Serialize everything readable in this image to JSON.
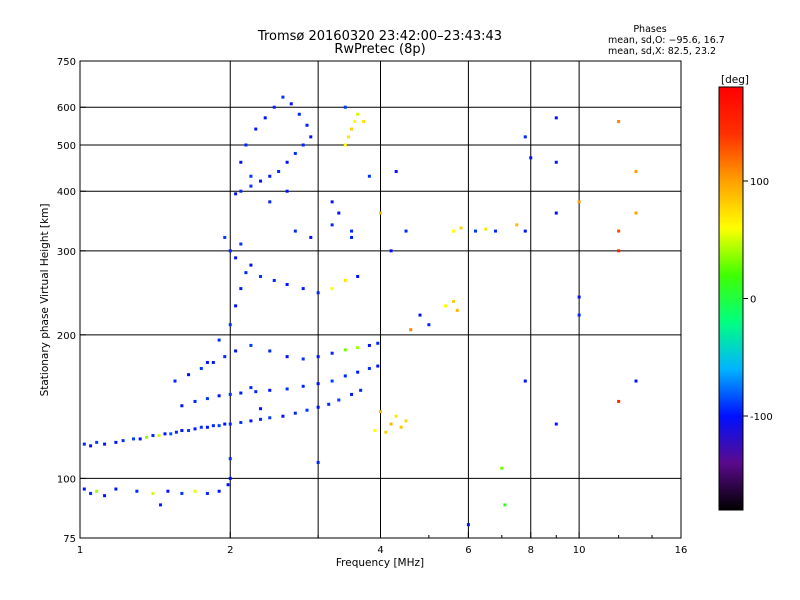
{
  "chart_data": {
    "type": "scatter",
    "title": "Tromsø 20160320 23:42:00–23:43:43",
    "subtitle": "RwPretec (8p)",
    "stats": {
      "header": "Phases",
      "line_o": "mean, sd,O: −95.6, 16.7",
      "line_x": "mean, sd,X:  82.5, 23.2"
    },
    "xlabel": "Frequency [MHz]",
    "ylabel": "Stationary phase Virtual Height [km]",
    "x_scale": "log",
    "y_scale": "log",
    "xlim": [
      1,
      16
    ],
    "ylim": [
      75,
      750
    ],
    "x_ticks": [
      {
        "value": 1,
        "label": "1"
      },
      {
        "value": 2,
        "label": "2"
      },
      {
        "value": 4,
        "label": "4"
      },
      {
        "value": 6,
        "label": "6"
      },
      {
        "value": 8,
        "label": "8"
      },
      {
        "value": 10,
        "label": "10"
      },
      {
        "value": 16,
        "label": "16"
      }
    ],
    "x_grid": [
      2,
      3,
      4,
      6,
      8,
      10
    ],
    "y_ticks": [
      {
        "value": 75,
        "label": "75"
      },
      {
        "value": 100,
        "label": "100"
      },
      {
        "value": 200,
        "label": "200"
      },
      {
        "value": 300,
        "label": "300"
      },
      {
        "value": 400,
        "label": "400"
      },
      {
        "value": 500,
        "label": "500"
      },
      {
        "value": 600,
        "label": "600"
      },
      {
        "value": 750,
        "label": "750"
      }
    ],
    "y_grid": [
      100,
      200,
      300,
      400,
      500,
      600
    ],
    "grid": true,
    "colorbar": {
      "label": "[deg]",
      "range": [
        -180,
        180
      ],
      "ticks": [
        {
          "value": 100,
          "label": "100"
        },
        {
          "value": 0,
          "label": "0"
        },
        {
          "value": -100,
          "label": "-100"
        }
      ],
      "colors": [
        "#000000",
        "#5a0a8c",
        "#0010ff",
        "#00b4ff",
        "#00ff80",
        "#40ff00",
        "#ffff00",
        "#ffa000",
        "#ff3000",
        "#ff0000"
      ]
    },
    "points": [
      [
        1.02,
        118,
        -95
      ],
      [
        1.05,
        117,
        -100
      ],
      [
        1.08,
        119,
        -90
      ],
      [
        1.12,
        118,
        -98
      ],
      [
        1.18,
        119,
        -105
      ],
      [
        1.22,
        120,
        -92
      ],
      [
        1.28,
        121,
        -88
      ],
      [
        1.32,
        121,
        -100
      ],
      [
        1.36,
        122,
        35
      ],
      [
        1.4,
        123,
        -95
      ],
      [
        1.44,
        123,
        50
      ],
      [
        1.48,
        124,
        -100
      ],
      [
        1.52,
        124,
        -85
      ],
      [
        1.56,
        125,
        -95
      ],
      [
        1.6,
        126,
        -100
      ],
      [
        1.65,
        126,
        -90
      ],
      [
        1.7,
        127,
        -98
      ],
      [
        1.75,
        128,
        -92
      ],
      [
        1.8,
        128,
        -100
      ],
      [
        1.85,
        129,
        -95
      ],
      [
        1.9,
        129,
        -88
      ],
      [
        1.95,
        130,
        -100
      ],
      [
        2.0,
        130,
        -95
      ],
      [
        2.1,
        131,
        -92
      ],
      [
        2.2,
        132,
        -100
      ],
      [
        2.3,
        133,
        -95
      ],
      [
        2.4,
        134,
        -90
      ],
      [
        2.55,
        135,
        -100
      ],
      [
        2.7,
        137,
        -95
      ],
      [
        2.85,
        139,
        -92
      ],
      [
        3.0,
        141,
        -100
      ],
      [
        3.15,
        143,
        -95
      ],
      [
        3.3,
        146,
        -90
      ],
      [
        3.5,
        150,
        -98
      ],
      [
        3.65,
        153,
        -95
      ],
      [
        1.6,
        142,
        -100
      ],
      [
        1.7,
        145,
        -95
      ],
      [
        1.8,
        147,
        -90
      ],
      [
        1.9,
        149,
        -100
      ],
      [
        2.0,
        150,
        -92
      ],
      [
        2.1,
        151,
        -98
      ],
      [
        2.25,
        152,
        -95
      ],
      [
        2.4,
        153,
        -100
      ],
      [
        2.6,
        154,
        -92
      ],
      [
        2.8,
        156,
        -95
      ],
      [
        3.0,
        158,
        -100
      ],
      [
        3.2,
        160,
        -90
      ],
      [
        3.4,
        164,
        -95
      ],
      [
        3.6,
        167,
        -98
      ],
      [
        3.8,
        170,
        -92
      ],
      [
        3.95,
        172,
        -100
      ],
      [
        1.55,
        160,
        -95
      ],
      [
        1.65,
        165,
        -100
      ],
      [
        1.75,
        170,
        -92
      ],
      [
        1.85,
        175,
        -98
      ],
      [
        1.95,
        180,
        -95
      ],
      [
        2.05,
        185,
        -100
      ],
      [
        2.2,
        190,
        -90
      ],
      [
        2.4,
        185,
        -95
      ],
      [
        2.6,
        180,
        -100
      ],
      [
        2.8,
        178,
        -92
      ],
      [
        3.0,
        180,
        -98
      ],
      [
        3.2,
        183,
        -95
      ],
      [
        3.4,
        186,
        30
      ],
      [
        3.6,
        188,
        40
      ],
      [
        3.8,
        190,
        -100
      ],
      [
        3.95,
        192,
        -95
      ],
      [
        1.8,
        175,
        -100
      ],
      [
        1.9,
        195,
        -95
      ],
      [
        2.0,
        210,
        -92
      ],
      [
        2.05,
        230,
        -100
      ],
      [
        2.1,
        250,
        -98
      ],
      [
        2.15,
        270,
        -95
      ],
      [
        2.2,
        280,
        -100
      ],
      [
        2.3,
        265,
        -92
      ],
      [
        2.45,
        260,
        -95
      ],
      [
        2.6,
        255,
        -100
      ],
      [
        2.8,
        250,
        -98
      ],
      [
        3.0,
        245,
        -95
      ],
      [
        3.2,
        250,
        60
      ],
      [
        3.4,
        260,
        70
      ],
      [
        3.6,
        265,
        -100
      ],
      [
        1.95,
        320,
        -90
      ],
      [
        2.0,
        300,
        -95
      ],
      [
        2.05,
        290,
        -100
      ],
      [
        2.1,
        310,
        -92
      ],
      [
        2.7,
        330,
        -95
      ],
      [
        2.9,
        320,
        -100
      ],
      [
        3.2,
        340,
        -95
      ],
      [
        3.3,
        360,
        -100
      ],
      [
        3.2,
        380,
        -98
      ],
      [
        3.5,
        330,
        -95
      ],
      [
        2.05,
        395,
        -100
      ],
      [
        2.1,
        400,
        -95
      ],
      [
        2.2,
        410,
        -92
      ],
      [
        2.3,
        420,
        -100
      ],
      [
        2.4,
        430,
        -98
      ],
      [
        2.5,
        440,
        -95
      ],
      [
        2.6,
        460,
        -100
      ],
      [
        2.7,
        480,
        -92
      ],
      [
        2.8,
        500,
        -95
      ],
      [
        2.9,
        520,
        -100
      ],
      [
        2.85,
        550,
        -98
      ],
      [
        2.75,
        580,
        -95
      ],
      [
        2.65,
        610,
        -100
      ],
      [
        2.55,
        630,
        -92
      ],
      [
        2.45,
        600,
        -95
      ],
      [
        2.35,
        570,
        -100
      ],
      [
        2.25,
        540,
        -98
      ],
      [
        2.15,
        500,
        -95
      ],
      [
        2.1,
        460,
        -100
      ],
      [
        2.2,
        430,
        -92
      ],
      [
        2.4,
        380,
        -95
      ],
      [
        2.6,
        400,
        -100
      ],
      [
        3.4,
        500,
        60
      ],
      [
        3.45,
        520,
        70
      ],
      [
        3.5,
        540,
        80
      ],
      [
        3.55,
        560,
        60
      ],
      [
        3.6,
        580,
        50
      ],
      [
        3.4,
        600,
        -90
      ],
      [
        3.7,
        560,
        70
      ],
      [
        4.1,
        125,
        80
      ],
      [
        4.2,
        130,
        90
      ],
      [
        4.3,
        135,
        70
      ],
      [
        4.4,
        128,
        85
      ],
      [
        4.5,
        132,
        75
      ],
      [
        4.0,
        138,
        90
      ],
      [
        3.9,
        126,
        60
      ],
      [
        1.02,
        95,
        -100
      ],
      [
        1.05,
        93,
        -95
      ],
      [
        1.08,
        94,
        40
      ],
      [
        1.12,
        92,
        -100
      ],
      [
        1.18,
        95,
        -98
      ],
      [
        1.3,
        94,
        -95
      ],
      [
        1.4,
        93,
        50
      ],
      [
        1.5,
        94,
        -100
      ],
      [
        1.6,
        93,
        -92
      ],
      [
        1.7,
        94,
        55
      ],
      [
        1.8,
        93,
        -95
      ],
      [
        1.9,
        94,
        -100
      ],
      [
        1.45,
        88,
        -98
      ],
      [
        1.98,
        97,
        -100
      ],
      [
        5.6,
        330,
        60
      ],
      [
        5.8,
        335,
        80
      ],
      [
        6.2,
        330,
        -90
      ],
      [
        6.5,
        333,
        70
      ],
      [
        6.8,
        330,
        -95
      ],
      [
        7.8,
        330,
        -100
      ],
      [
        7.5,
        340,
        90
      ],
      [
        5.6,
        235,
        80
      ],
      [
        5.4,
        230,
        60
      ],
      [
        5.7,
        225,
        90
      ],
      [
        4.8,
        220,
        -100
      ],
      [
        5.0,
        210,
        -95
      ],
      [
        4.6,
        205,
        110
      ],
      [
        10.0,
        240,
        -100
      ],
      [
        10.0,
        220,
        -95
      ],
      [
        7.8,
        160,
        -100
      ],
      [
        12.0,
        145,
        150
      ],
      [
        13.0,
        160,
        -100
      ],
      [
        9.0,
        130,
        -98
      ],
      [
        7.0,
        105,
        30
      ],
      [
        7.1,
        88,
        10
      ],
      [
        6.0,
        80,
        -100
      ],
      [
        9.0,
        360,
        -100
      ],
      [
        10.0,
        380,
        100
      ],
      [
        12.0,
        560,
        110
      ],
      [
        13.0,
        440,
        100
      ],
      [
        13.0,
        360,
        100
      ],
      [
        12.0,
        330,
        130
      ],
      [
        12.0,
        300,
        150
      ],
      [
        9.0,
        570,
        -100
      ],
      [
        9.0,
        460,
        -98
      ],
      [
        8.0,
        470,
        -100
      ],
      [
        7.8,
        520,
        -95
      ],
      [
        4.3,
        440,
        -100
      ],
      [
        3.8,
        430,
        -92
      ],
      [
        4.0,
        360,
        90
      ],
      [
        4.2,
        300,
        -100
      ],
      [
        4.5,
        330,
        -95
      ],
      [
        3.5,
        320,
        -98
      ],
      [
        2.3,
        140,
        -100
      ],
      [
        2.2,
        155,
        -95
      ],
      [
        2.0,
        110,
        -92
      ],
      [
        2.0,
        100,
        -100
      ],
      [
        3.0,
        108,
        -95
      ]
    ]
  }
}
